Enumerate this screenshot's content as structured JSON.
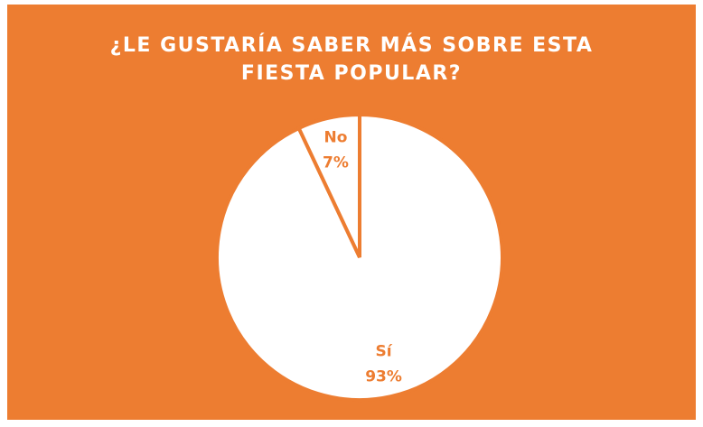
{
  "chart_data": {
    "type": "pie",
    "title": "¿LE GUSTARÍA SABER MÁS SOBRE ESTA FIESTA POPULAR?",
    "categories": [
      "Sí",
      "No"
    ],
    "values": [
      93,
      7
    ],
    "value_labels": [
      "93%",
      "7%"
    ],
    "colors": [
      "#ffffff",
      "#ffffff"
    ],
    "background": "#ed7d31",
    "label_color": "#ed7d31"
  }
}
